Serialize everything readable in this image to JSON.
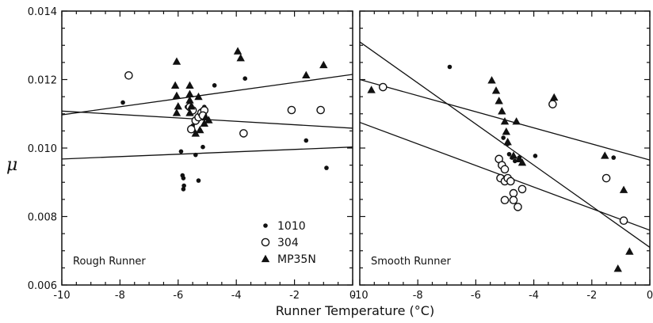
{
  "chart_data": [
    {
      "type": "scatter",
      "panel_label": "Rough Runner",
      "ylabel": "μ",
      "xlim": [
        -10,
        0
      ],
      "ylim": [
        0.006,
        0.014
      ],
      "x_ticks": [
        "-10",
        "-8",
        "-6",
        "-4",
        "-2",
        "0"
      ],
      "y_ticks": [
        "0.006",
        "0.008",
        "0.010",
        "0.012",
        "0.014"
      ],
      "legend": {
        "placement": "bottom-right",
        "entries": [
          {
            "label": "1010",
            "marker": "filled-circle"
          },
          {
            "label": "304",
            "marker": "open-circle"
          },
          {
            "label": "MP35N",
            "marker": "filled-triangle"
          }
        ]
      },
      "series": [
        {
          "name": "1010",
          "marker": "filled-circle",
          "points": [
            [
              -7.9,
              0.01133
            ],
            [
              -5.9,
              0.0099
            ],
            [
              -5.85,
              0.0092
            ],
            [
              -5.82,
              0.00912
            ],
            [
              -5.8,
              0.0089
            ],
            [
              -5.82,
              0.0088
            ],
            [
              -5.7,
              0.0112
            ],
            [
              -5.5,
              0.01065
            ],
            [
              -5.4,
              0.0098
            ],
            [
              -5.2,
              0.0111
            ],
            [
              -5.15,
              0.01003
            ],
            [
              -5.3,
              0.00905
            ],
            [
              -5.1,
              0.0112
            ],
            [
              -4.75,
              0.01183
            ],
            [
              -3.7,
              0.01203
            ],
            [
              -1.6,
              0.01022
            ],
            [
              -0.9,
              0.00942
            ]
          ]
        },
        {
          "name": "304",
          "marker": "open-circle",
          "points": [
            [
              -7.7,
              0.01212
            ],
            [
              -5.6,
              0.0112
            ],
            [
              -5.55,
              0.01055
            ],
            [
              -5.5,
              0.0111
            ],
            [
              -5.4,
              0.0108
            ],
            [
              -5.3,
              0.0109
            ],
            [
              -5.2,
              0.01103
            ],
            [
              -5.1,
              0.0111
            ],
            [
              -5.15,
              0.01095
            ],
            [
              -3.75,
              0.01043
            ],
            [
              -2.1,
              0.01111
            ],
            [
              -1.1,
              0.01111
            ]
          ]
        },
        {
          "name": "MP35N",
          "marker": "filled-triangle",
          "points": [
            [
              -6.05,
              0.01253
            ],
            [
              -6.1,
              0.01183
            ],
            [
              -6.05,
              0.01153
            ],
            [
              -6.0,
              0.01122
            ],
            [
              -6.05,
              0.01103
            ],
            [
              -5.6,
              0.01183
            ],
            [
              -5.6,
              0.01158
            ],
            [
              -5.6,
              0.0114
            ],
            [
              -5.55,
              0.01122
            ],
            [
              -5.6,
              0.01103
            ],
            [
              -5.4,
              0.01043
            ],
            [
              -5.3,
              0.0115
            ],
            [
              -5.25,
              0.01053
            ],
            [
              -5.1,
              0.01072
            ],
            [
              -5.05,
              0.0109
            ],
            [
              -4.95,
              0.01082
            ],
            [
              -3.95,
              0.01283
            ],
            [
              -3.85,
              0.01263
            ],
            [
              -1.6,
              0.01213
            ],
            [
              -1.0,
              0.01243
            ]
          ]
        }
      ],
      "fit_lines": [
        {
          "x": [
            -10,
            0
          ],
          "y": [
            0.01097,
            0.01215
          ]
        },
        {
          "x": [
            -10,
            0
          ],
          "y": [
            0.01108,
            0.01058
          ]
        },
        {
          "x": [
            -10,
            0
          ],
          "y": [
            0.00968,
            0.01003
          ]
        }
      ]
    },
    {
      "type": "scatter",
      "panel_label": "Smooth Runner",
      "xlim": [
        -10,
        0
      ],
      "ylim": [
        0.006,
        0.014
      ],
      "x_ticks": [
        "-10",
        "-8",
        "-6",
        "-4",
        "-2",
        "0"
      ],
      "series": [
        {
          "name": "1010",
          "marker": "filled-circle",
          "points": [
            [
              -6.9,
              0.01237
            ],
            [
              -5.05,
              0.0103
            ],
            [
              -4.9,
              0.01012
            ],
            [
              -4.85,
              0.00982
            ],
            [
              -4.75,
              0.00972
            ],
            [
              -4.65,
              0.00962
            ],
            [
              -4.5,
              0.00972
            ],
            [
              -3.95,
              0.00977
            ],
            [
              -1.25,
              0.00972
            ]
          ]
        },
        {
          "name": "304",
          "marker": "open-circle",
          "points": [
            [
              -9.2,
              0.01178
            ],
            [
              -5.2,
              0.00968
            ],
            [
              -5.1,
              0.0095
            ],
            [
              -5.0,
              0.00938
            ],
            [
              -5.15,
              0.00912
            ],
            [
              -5.0,
              0.00903
            ],
            [
              -4.9,
              0.00912
            ],
            [
              -4.8,
              0.00903
            ],
            [
              -5.0,
              0.00848
            ],
            [
              -4.7,
              0.00868
            ],
            [
              -4.7,
              0.00848
            ],
            [
              -4.55,
              0.00828
            ],
            [
              -4.4,
              0.0088
            ],
            [
              -3.35,
              0.01128
            ],
            [
              -1.5,
              0.00912
            ],
            [
              -0.9,
              0.00788
            ]
          ]
        },
        {
          "name": "MP35N",
          "marker": "filled-triangle",
          "points": [
            [
              -9.6,
              0.0117
            ],
            [
              -5.45,
              0.01198
            ],
            [
              -5.3,
              0.01168
            ],
            [
              -5.2,
              0.01138
            ],
            [
              -5.1,
              0.01108
            ],
            [
              -5.0,
              0.01078
            ],
            [
              -4.95,
              0.01048
            ],
            [
              -4.9,
              0.01018
            ],
            [
              -4.7,
              0.00978
            ],
            [
              -4.6,
              0.01078
            ],
            [
              -4.5,
              0.00968
            ],
            [
              -4.4,
              0.00958
            ],
            [
              -3.3,
              0.01148
            ],
            [
              -1.55,
              0.00978
            ],
            [
              -0.9,
              0.00878
            ],
            [
              -0.7,
              0.00698
            ],
            [
              -1.1,
              0.00648
            ]
          ]
        }
      ],
      "fit_lines": [
        {
          "x": [
            -10,
            0
          ],
          "y": [
            0.0131,
            0.0071
          ]
        },
        {
          "x": [
            -10,
            0
          ],
          "y": [
            0.012,
            0.00965
          ]
        },
        {
          "x": [
            -10,
            0
          ],
          "y": [
            0.01075,
            0.0076
          ]
        }
      ]
    }
  ],
  "xlabel": "Runner Temperature (°C)"
}
